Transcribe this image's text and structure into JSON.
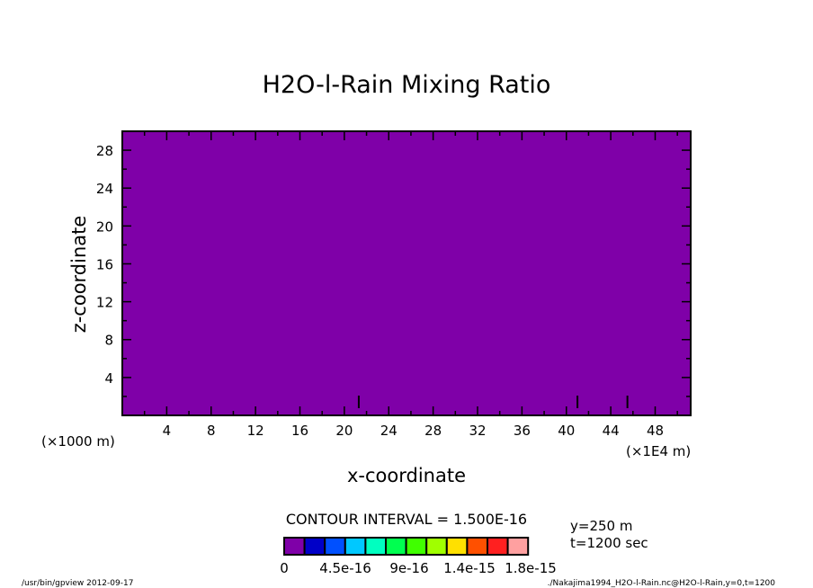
{
  "chart_data": {
    "type": "heatmap",
    "title": "H2O-l-Rain Mixing Ratio",
    "xlabel": "x-coordinate",
    "ylabel": "z-coordinate",
    "x_unit_left": "(×1000 m)",
    "x_unit_right": "(×1E4 m)",
    "xlim": [
      0,
      51.2
    ],
    "ylim": [
      0,
      30
    ],
    "xticks": [
      4,
      8,
      12,
      16,
      20,
      24,
      28,
      32,
      36,
      40,
      44,
      48
    ],
    "yticks": [
      4,
      8,
      12,
      16,
      20,
      24,
      28
    ],
    "field_value": 0,
    "field_color": "#7f00a8",
    "small_features_x": [
      21.3,
      41,
      45.5
    ],
    "contour_interval": "CONTOUR INTERVAL = 1.500E-16",
    "colorbar": {
      "colors": [
        "#7f00a8",
        "#0000c8",
        "#0050ff",
        "#00c8ff",
        "#00ffc0",
        "#00ff50",
        "#40ff00",
        "#a0ff00",
        "#ffe000",
        "#ff5000",
        "#ff2020",
        "#ffa0a0"
      ],
      "labels": [
        "0",
        "4.5e-16",
        "9e-16",
        "1.4e-15",
        "1.8e-15"
      ]
    },
    "annotations": [
      "y=250 m",
      "t=1200 sec"
    ],
    "footer_left": "/usr/bin/gpview  2012-09-17",
    "footer_right": "./Nakajima1994_H2O-l-Rain.nc@H2O-l-Rain,y=0,t=1200"
  }
}
